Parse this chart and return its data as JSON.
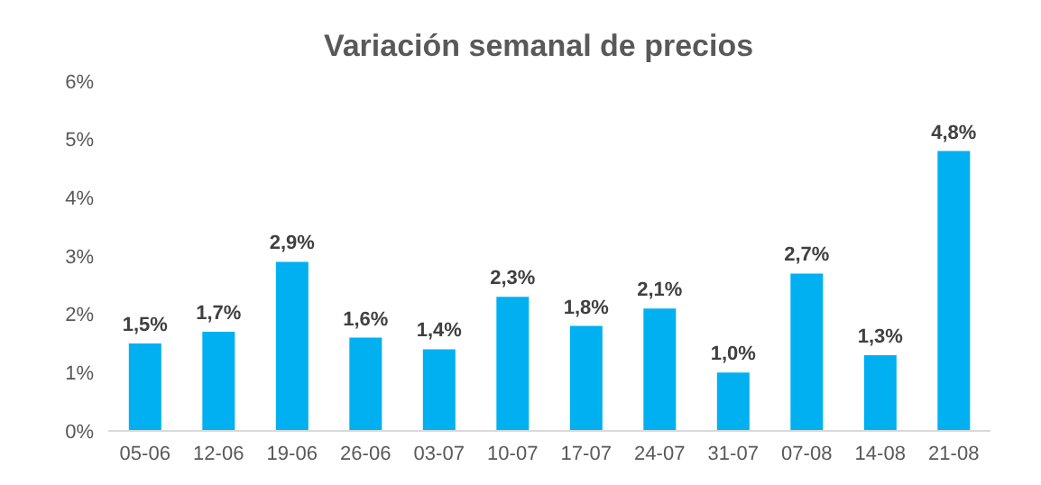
{
  "chart_data": {
    "type": "bar",
    "title": "Variación semanal de precios",
    "categories": [
      "05-06",
      "12-06",
      "19-06",
      "26-06",
      "03-07",
      "10-07",
      "17-07",
      "24-07",
      "31-07",
      "07-08",
      "14-08",
      "21-08"
    ],
    "values": [
      1.5,
      1.7,
      2.9,
      1.6,
      1.4,
      2.3,
      1.8,
      2.1,
      1.0,
      2.7,
      1.3,
      4.8
    ],
    "value_labels": [
      "1,5%",
      "1,7%",
      "2,9%",
      "1,6%",
      "1,4%",
      "2,3%",
      "1,8%",
      "2,1%",
      "1,0%",
      "2,7%",
      "1,3%",
      "4,8%"
    ],
    "color": "#00b0f0",
    "ylim": [
      0,
      6
    ],
    "yticks": [
      {
        "value": 0,
        "label": "0%"
      },
      {
        "value": 1,
        "label": "1%"
      },
      {
        "value": 2,
        "label": "2%"
      },
      {
        "value": 3,
        "label": "3%"
      },
      {
        "value": 4,
        "label": "4%"
      },
      {
        "value": 5,
        "label": "5%"
      },
      {
        "value": 6,
        "label": "6%"
      }
    ],
    "grid": false
  }
}
